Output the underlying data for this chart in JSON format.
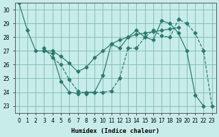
{
  "xlabel": "Humidex (Indice chaleur)",
  "background_color": "#c8ece8",
  "grid_color": "#7ab8b0",
  "line_color": "#2a7a6e",
  "xlim": [
    -0.5,
    23.5
  ],
  "ylim": [
    22.5,
    30.5
  ],
  "yticks": [
    23,
    24,
    25,
    26,
    27,
    28,
    29,
    30
  ],
  "xticks": [
    0,
    1,
    2,
    3,
    4,
    5,
    6,
    7,
    8,
    9,
    10,
    11,
    12,
    13,
    14,
    15,
    16,
    17,
    18,
    19,
    20,
    21,
    22,
    23
  ],
  "series": [
    {
      "x": [
        0,
        1,
        2,
        3,
        4,
        5,
        6,
        7,
        8,
        9,
        10,
        11,
        12,
        13,
        14,
        15,
        16,
        17,
        18,
        19,
        20,
        21,
        22
      ],
      "y": [
        30.5,
        28.5,
        27.0,
        27.0,
        26.8,
        24.8,
        24.0,
        23.9,
        24.0,
        24.0,
        25.2,
        27.5,
        27.2,
        28.0,
        28.5,
        28.0,
        27.8,
        29.2,
        29.0,
        28.3,
        27.0,
        23.8,
        23.0
      ],
      "linestyle": "-"
    },
    {
      "x": [
        3,
        4,
        5,
        6,
        7,
        8,
        9,
        10,
        11,
        12,
        13,
        14,
        15,
        16,
        17,
        18,
        19
      ],
      "y": [
        27.0,
        27.0,
        26.6,
        26.1,
        25.5,
        25.8,
        26.5,
        27.0,
        27.5,
        27.8,
        28.0,
        28.2,
        28.3,
        28.4,
        28.5,
        28.6,
        28.7
      ],
      "linestyle": "-"
    },
    {
      "x": [
        3,
        4,
        5,
        6,
        7,
        8,
        9,
        10,
        11,
        12,
        13,
        14,
        15,
        16,
        17,
        18,
        19,
        20,
        21,
        22,
        23
      ],
      "y": [
        27.2,
        26.5,
        26.0,
        24.9,
        24.1,
        23.9,
        24.0,
        24.0,
        24.1,
        25.0,
        27.2,
        27.2,
        28.0,
        28.5,
        28.1,
        28.0,
        29.3,
        29.0,
        28.3,
        27.0,
        23.0
      ],
      "linestyle": "--"
    }
  ]
}
